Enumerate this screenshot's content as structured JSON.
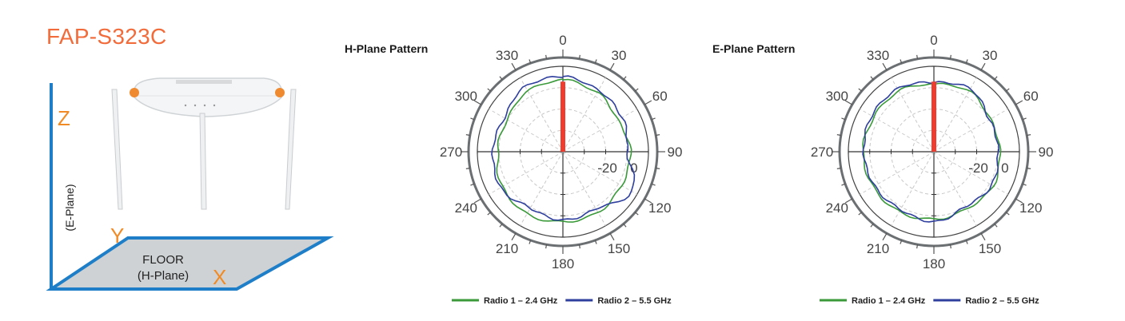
{
  "product": {
    "model": "FAP-S323C"
  },
  "diagram": {
    "axis_z": "Z",
    "axis_y": "Y",
    "axis_x": "X",
    "e_plane_label": "(E-Plane)",
    "floor_label_1": "FLOOR",
    "floor_label_2": "(H-Plane)"
  },
  "colors": {
    "radio1": "#3a9a3a",
    "radio2": "#2f3f9e",
    "marker": "#f03c2f",
    "title": "#f26b3a",
    "axis_letters": "#f28a24",
    "axes_lines": "#1e7fc8"
  },
  "chart_data": [
    {
      "type": "polar",
      "title": "H-Plane Pattern",
      "angle_labels": [
        "0",
        "30",
        "60",
        "90",
        "120",
        "150",
        "180",
        "210",
        "240",
        "270",
        "300",
        "330"
      ],
      "ring_labels": [
        "-20",
        "0"
      ],
      "series": [
        {
          "name": "Radio 1 – 2.4 GHz",
          "color": "#3a9a3a",
          "angles": [
            0,
            30,
            60,
            90,
            120,
            150,
            180,
            210,
            240,
            270,
            300,
            330,
            360
          ],
          "radius": [
            0.84,
            0.8,
            0.74,
            0.79,
            0.79,
            0.82,
            0.82,
            0.84,
            0.82,
            0.76,
            0.75,
            0.82,
            0.84
          ]
        },
        {
          "name": "Radio 2 – 5.5 GHz",
          "color": "#2f3f9e",
          "angles": [
            0,
            30,
            60,
            90,
            120,
            150,
            180,
            210,
            240,
            270,
            300,
            330,
            360
          ],
          "radius": [
            0.88,
            0.83,
            0.8,
            0.75,
            0.93,
            0.77,
            0.8,
            0.76,
            0.84,
            0.82,
            0.79,
            0.88,
            0.88
          ]
        }
      ]
    },
    {
      "type": "polar",
      "title": "E-Plane Pattern",
      "angle_labels": [
        "0",
        "30",
        "60",
        "90",
        "120",
        "150",
        "180",
        "210",
        "240",
        "270",
        "300",
        "330"
      ],
      "ring_labels": [
        "-20",
        "0"
      ],
      "series": [
        {
          "name": "Radio 1 – 2.4 GHz",
          "color": "#3a9a3a",
          "angles": [
            0,
            30,
            60,
            90,
            120,
            150,
            180,
            210,
            240,
            270,
            300,
            330,
            360
          ],
          "radius": [
            0.79,
            0.82,
            0.76,
            0.77,
            0.8,
            0.77,
            0.79,
            0.81,
            0.82,
            0.83,
            0.81,
            0.82,
            0.79
          ]
        },
        {
          "name": "Radio 2 – 5.5 GHz",
          "color": "#2f3f9e",
          "angles": [
            0,
            30,
            60,
            90,
            120,
            150,
            180,
            210,
            240,
            270,
            300,
            330,
            360
          ],
          "radius": [
            0.81,
            0.85,
            0.75,
            0.75,
            0.78,
            0.74,
            0.82,
            0.78,
            0.8,
            0.82,
            0.84,
            0.85,
            0.81
          ]
        }
      ]
    }
  ]
}
